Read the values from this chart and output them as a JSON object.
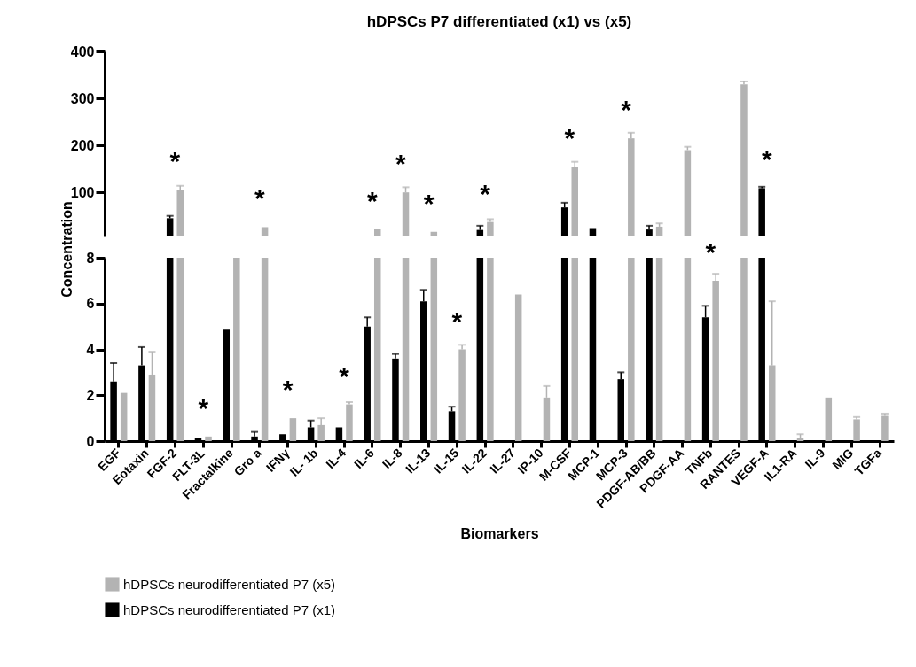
{
  "chart_data": [
    {
      "type": "bar",
      "title": "hDPSCs P7 differentiated (x1) vs (x5)",
      "categories": [
        "EGF",
        "Eotaxin",
        "FGF-2",
        "FLT-3L",
        "Fractalkine",
        "Gro a",
        "IFNγ",
        "IL- 1b",
        "IL-4",
        "IL-6",
        "IL-8",
        "IL-13",
        "IL-15",
        "IL-22",
        "IL-27",
        "IP-10",
        "M-CSF",
        "MCP-1",
        "MCP-3",
        "PDGF-AB/BB",
        "PDGF-AA",
        "TNFb",
        "RANTES",
        "VEGF-A",
        "IL1-RA",
        "IL-9",
        "MIG",
        "TGFa"
      ],
      "series": [
        {
          "color": "#b3b3b3",
          "values": [
            null,
            null,
            106,
            null,
            null,
            26,
            null,
            null,
            null,
            22,
            100,
            16,
            null,
            37,
            null,
            null,
            155,
            null,
            215,
            27,
            190,
            null,
            330,
            null,
            null,
            null,
            null,
            null
          ],
          "errors": [
            null,
            null,
            8,
            null,
            null,
            null,
            null,
            null,
            null,
            null,
            11,
            null,
            null,
            6,
            null,
            null,
            10,
            null,
            12,
            7,
            7,
            null,
            6,
            null,
            null,
            null,
            null,
            null
          ]
        },
        {
          "color": "#000000",
          "values": [
            null,
            null,
            45,
            null,
            null,
            null,
            null,
            null,
            null,
            null,
            null,
            null,
            null,
            20,
            null,
            null,
            68,
            24,
            null,
            21,
            null,
            null,
            null,
            109,
            null,
            null,
            null,
            null
          ],
          "errors": [
            null,
            null,
            5,
            null,
            null,
            null,
            null,
            null,
            null,
            null,
            null,
            null,
            null,
            9,
            null,
            null,
            10,
            null,
            null,
            8,
            null,
            null,
            null,
            3,
            null,
            null,
            null,
            null
          ]
        }
      ],
      "ylim": [
        8,
        400
      ],
      "yticks": [
        100,
        200,
        300,
        400
      ],
      "tick_labels": "y",
      "annotations": [
        {
          "text": "*",
          "x": "FGF-2",
          "y": 106
        },
        {
          "text": "*",
          "x": "Gro a",
          "y": 26
        },
        {
          "text": "*",
          "x": "IL-6",
          "y": 22
        },
        {
          "text": "*",
          "x": "IL-8",
          "y": 100
        },
        {
          "text": "*",
          "x": "IL-13",
          "y": 16
        },
        {
          "text": "*",
          "x": "IL-22",
          "y": 37
        },
        {
          "text": "*",
          "x": "M-CSF",
          "y": 155
        },
        {
          "text": "*",
          "x": "MCP-3",
          "y": 215
        },
        {
          "text": "*",
          "x": "VEGF-A",
          "y": 109
        }
      ]
    },
    {
      "type": "bar",
      "xlabel": "Biomarkers",
      "ylabel": "Concentration",
      "categories": [
        "EGF",
        "Eotaxin",
        "FGF-2",
        "FLT-3L",
        "Fractalkine",
        "Gro a",
        "IFNγ",
        "IL- 1b",
        "IL-4",
        "IL-6",
        "IL-8",
        "IL-13",
        "IL-15",
        "IL-22",
        "IL-27",
        "IP-10",
        "M-CSF",
        "MCP-1",
        "MCP-3",
        "PDGF-AB/BB",
        "PDGF-AA",
        "TNFb",
        "RANTES",
        "VEGF-A",
        "IL1-RA",
        "IL-9",
        "MIG",
        "TGFa"
      ],
      "series": [
        {
          "name": "hDPSCs neurodifferentiated P7 (x5)",
          "color": "#b3b3b3",
          "values": [
            2.1,
            2.9,
            8,
            0.2,
            8,
            8,
            1.0,
            0.7,
            1.6,
            8,
            8,
            8,
            4.0,
            8,
            6.4,
            1.9,
            8,
            null,
            8,
            8,
            8,
            7.0,
            8,
            3.3,
            0.15,
            1.9,
            0.95,
            1.1
          ],
          "errors": [
            null,
            1.0,
            null,
            null,
            null,
            null,
            null,
            0.3,
            0.1,
            null,
            null,
            null,
            0.2,
            null,
            null,
            0.5,
            null,
            null,
            null,
            null,
            null,
            0.3,
            null,
            2.8,
            0.15,
            null,
            0.1,
            0.1
          ]
        },
        {
          "name": "hDPSCs neurodifferentiated P7 (x1)",
          "color": "#000000",
          "values": [
            2.6,
            3.3,
            8,
            0.15,
            4.9,
            0.2,
            0.3,
            0.6,
            0.6,
            5.0,
            3.6,
            6.1,
            1.3,
            8,
            null,
            null,
            8,
            8,
            2.7,
            8,
            null,
            5.4,
            null,
            8,
            null,
            null,
            null,
            null
          ],
          "errors": [
            0.8,
            0.8,
            null,
            null,
            null,
            0.2,
            null,
            0.3,
            null,
            0.4,
            0.2,
            0.5,
            0.2,
            null,
            null,
            null,
            null,
            null,
            0.3,
            null,
            null,
            0.5,
            null,
            null,
            null,
            null,
            null,
            null
          ]
        }
      ],
      "ylim": [
        0,
        8
      ],
      "yticks": [
        0,
        2,
        4,
        6,
        8
      ],
      "legend": "bottom left",
      "annotations": [
        {
          "text": "*",
          "x": "FLT-3L",
          "y": 0.2
        },
        {
          "text": "*",
          "x": "IFNγ",
          "y": 1.0
        },
        {
          "text": "*",
          "x": "IL-4",
          "y": 1.6
        },
        {
          "text": "*",
          "x": "IL-15",
          "y": 4.0
        },
        {
          "text": "*",
          "x": "TNFb",
          "y": 7.0
        }
      ]
    }
  ]
}
